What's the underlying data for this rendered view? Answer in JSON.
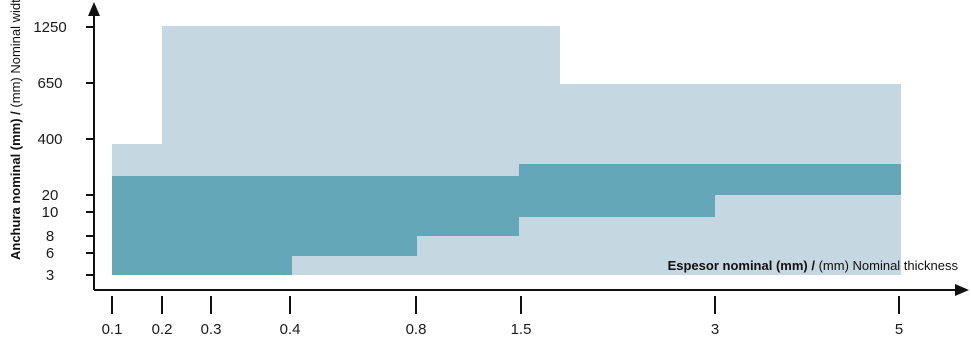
{
  "chart_data": {
    "type": "area",
    "title": "",
    "xlabel": {
      "bold": "Espesor nominal (mm) /",
      "normal": " (mm) Nominal thickness"
    },
    "ylabel": {
      "bold": "Anchura nominal (mm) /",
      "normal": " (mm) Nominal width"
    },
    "x_ticks": [
      "0.1",
      "0.2",
      "0.3",
      "0.4",
      "0.8",
      "1.5",
      "3",
      "5"
    ],
    "y_ticks": [
      "3",
      "6",
      "8",
      "10",
      "20",
      "400",
      "650",
      "1250"
    ],
    "axis_scale": "categorical (uneven tick spacing, ticks placed as printed)",
    "series": [
      {
        "role": "outer range",
        "color": "#c5d7e0",
        "steps": [
          {
            "from": "0.1",
            "to": "0.2",
            "width_top": "≈500"
          },
          {
            "from": "0.2",
            "to": "≈1.7",
            "width_top": "1250"
          },
          {
            "from": "≈1.7",
            "to": "5",
            "width_top": "650"
          }
        ]
      },
      {
        "role": "inner range",
        "color": "#64a7b9",
        "steps": [
          {
            "from": "0.1",
            "to": "0.4",
            "bottom": "3",
            "top": "≈50"
          },
          {
            "from": "0.4",
            "to": "0.8",
            "bottom": "≈5",
            "top": "≈50"
          },
          {
            "from": "0.8",
            "to": "1.5",
            "bottom": "≈7",
            "top": "≈50"
          },
          {
            "from": "1.5",
            "to": "3",
            "bottom": "≈9",
            "top": "≈100"
          },
          {
            "from": "3",
            "to": "5",
            "bottom": "≈15",
            "top": "≈100"
          }
        ]
      }
    ],
    "grid": false,
    "legend": "none"
  }
}
